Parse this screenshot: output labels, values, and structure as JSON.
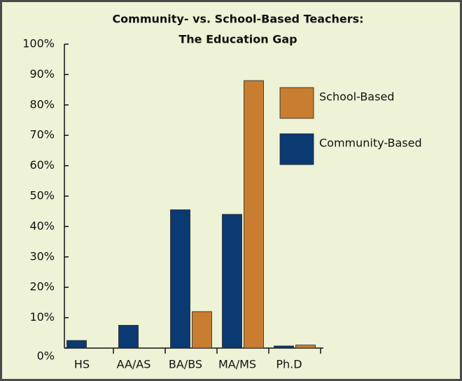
{
  "chart_data": {
    "type": "bar",
    "title": [
      "Community- vs. School-Based Teachers:",
      "The Education Gap"
    ],
    "categories": [
      "HS",
      "AA/AS",
      "BA/BS",
      "MA/MS",
      "Ph.D"
    ],
    "series": [
      {
        "name": "Community-Based",
        "color": "#0b3a72",
        "values": [
          2.5,
          7.5,
          45.5,
          44,
          0.7
        ]
      },
      {
        "name": "School-Based",
        "color": "#c97d30",
        "values": [
          0,
          0,
          12,
          88,
          1
        ]
      }
    ],
    "ylim": [
      0,
      100
    ],
    "yticks": [
      {
        "value": 0,
        "label": "0%"
      },
      {
        "value": 10,
        "label": "10%"
      },
      {
        "value": 20,
        "label": "20%"
      },
      {
        "value": 30,
        "label": "30%"
      },
      {
        "value": 40,
        "label": "40%"
      },
      {
        "value": 50,
        "label": "50%"
      },
      {
        "value": 60,
        "label": "60%"
      },
      {
        "value": 70,
        "label": "70%"
      },
      {
        "value": 80,
        "label": "80%"
      },
      {
        "value": 90,
        "label": "90%"
      },
      {
        "value": 100,
        "label": "100%"
      }
    ]
  }
}
